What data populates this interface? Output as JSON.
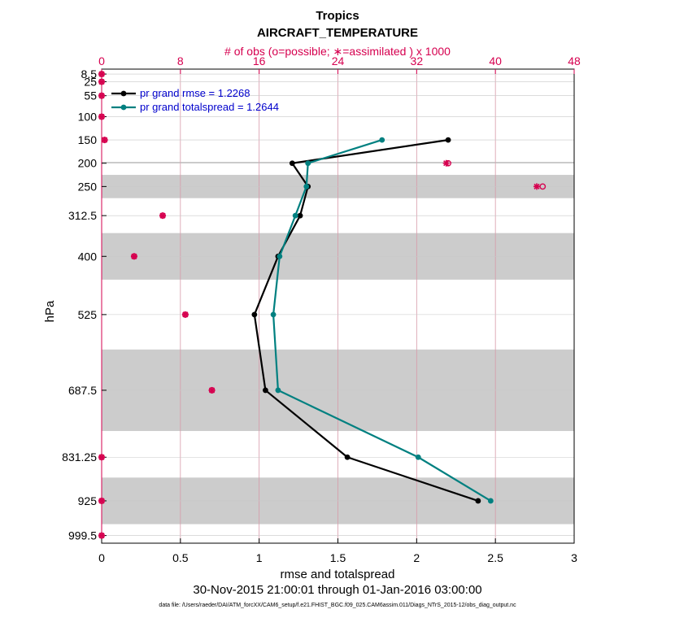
{
  "chart_data": {
    "type": "line",
    "title": "Tropics",
    "subtitle": "AIRCRAFT_TEMPERATURE",
    "top_axis_label": "# of obs (o=possible; ∗=assimilated ) x 1000",
    "xlabel": "rmse and totalspread",
    "ylabel": "hPa",
    "date_range": "30-Nov-2015 21:00:01 through 01-Jan-2016 03:00:00",
    "footnote": "data file: /Users/raeder/DAI/ATM_forcXX/CAM6_setup/f.e21.FHIST_BGC.f09_025.CAM6assim.011/Diags_NTrS_2015-12/obs_diag_output.nc",
    "xlim": [
      0,
      3
    ],
    "x_ticks": [
      "0",
      "0.5",
      "1",
      "1.5",
      "2",
      "2.5",
      "3"
    ],
    "top_xlim": [
      0,
      48
    ],
    "top_ticks": [
      "0",
      "8",
      "16",
      "24",
      "32",
      "40",
      "48"
    ],
    "y_levels": [
      "8.5",
      "25",
      "55",
      "100",
      "150",
      "200",
      "250",
      "312.5",
      "400",
      "525",
      "687.5",
      "831.25",
      "925",
      "999.5"
    ],
    "grid": true,
    "legend_position": "top-left",
    "series": [
      {
        "name": "pr grand rmse = 1.2268",
        "color": "#000000",
        "levels": [
          150,
          200,
          250,
          312.5,
          400,
          525,
          687.5,
          831.25,
          925
        ],
        "values": [
          2.2,
          1.21,
          1.31,
          1.26,
          1.12,
          0.97,
          1.04,
          1.56,
          2.39
        ]
      },
      {
        "name": "pr grand totalspread = 1.2644",
        "color": "#008080",
        "levels": [
          150,
          200,
          250,
          312.5,
          400,
          525,
          687.5,
          831.25,
          925
        ],
        "values": [
          1.78,
          1.31,
          1.3,
          1.23,
          1.13,
          1.09,
          1.12,
          2.01,
          2.47
        ]
      }
    ],
    "obs_count_possible": {
      "levels": [
        8.5,
        25,
        55,
        100,
        150,
        200,
        250,
        312.5,
        400,
        525,
        687.5,
        831.25,
        925,
        999.5
      ],
      "values": [
        0,
        0,
        0,
        0,
        0.3,
        35.2,
        44.8,
        6.2,
        3.3,
        8.5,
        11.2,
        0,
        0,
        0
      ]
    },
    "obs_count_assimilated": {
      "levels": [
        8.5,
        25,
        55,
        100,
        150,
        200,
        250,
        312.5,
        400,
        525,
        687.5,
        831.25,
        925,
        999.5
      ],
      "values": [
        0,
        0,
        0,
        0,
        0.3,
        35.0,
        44.2,
        6.2,
        3.3,
        8.5,
        11.2,
        0,
        0,
        0
      ]
    },
    "shaded_bands_hPa": [
      [
        0,
        5
      ],
      [
        15,
        40
      ],
      [
        125,
        175
      ],
      [
        225,
        275
      ],
      [
        350,
        450
      ],
      [
        600,
        775
      ],
      [
        875,
        975
      ]
    ],
    "colors": {
      "rmse": "#000000",
      "spread": "#008080",
      "obs": "#d6004f",
      "band": "#cccccc",
      "grid": "#d79aa9"
    }
  }
}
